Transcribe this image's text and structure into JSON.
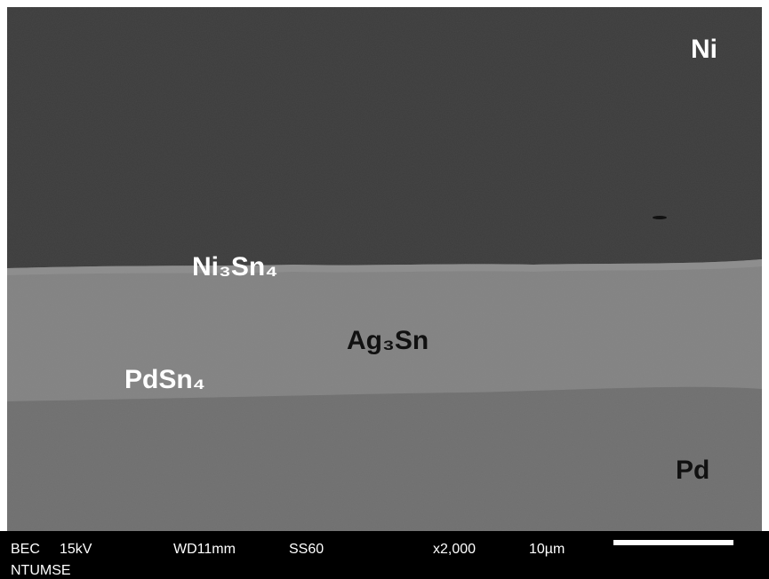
{
  "labels": {
    "top": "Ni",
    "interface": "Ni₃Sn₄",
    "middle": "Ag₃Sn",
    "lower_interface": "PdSn₄",
    "bottom": "Pd"
  },
  "info_bar": {
    "mode": "BEC",
    "voltage": "15kV",
    "working_distance": "WD11mm",
    "spot_size": "SS60",
    "magnification": "x2,000",
    "scale": "10µm",
    "institution": "NTUMSE"
  }
}
